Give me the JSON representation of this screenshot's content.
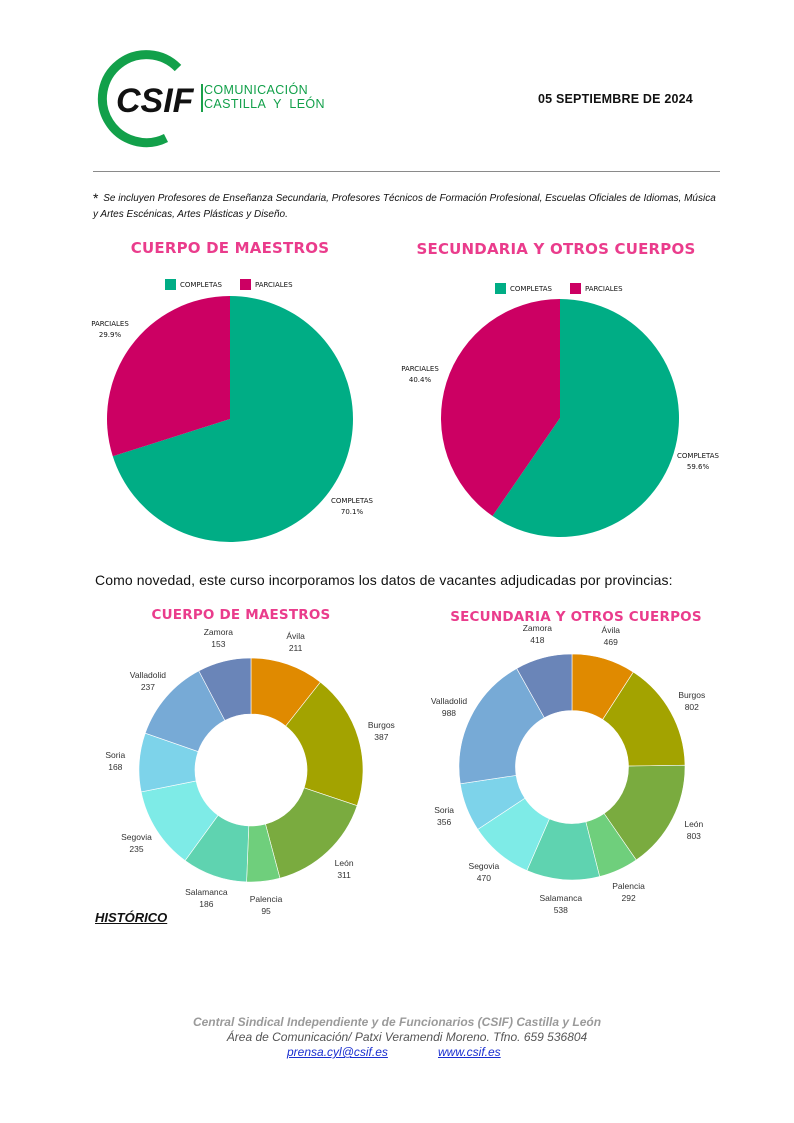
{
  "header": {
    "logo_text": "CSIF",
    "org_line1": "COMUNICACIÓN",
    "org_line2": "CASTILLA  Y  LEÓN",
    "date": "05 SEPTIEMBRE DE 2024"
  },
  "footnote": {
    "star": "*",
    "text": "Se incluyen Profesores de Enseñanza Secundaria, Profesores Técnicos de Formación Profesional, Escuelas Oficiales de Idiomas, Música y Artes Escénicas, Artes Plásticas y Diseño."
  },
  "intro_text": "Como novedad, este curso incorporamos los datos de vacantes adjudicadas por provincias:",
  "historico": "HISTÓRICO",
  "colors": {
    "completas": "#00ad85",
    "parciales": "#cc0063",
    "title": "#ea3c8c",
    "brand_green": "#12a04a"
  },
  "chart_data": [
    {
      "type": "pie",
      "title": "CUERPO DE MAESTROS",
      "legend_position": "top",
      "labels": [
        "COMPLETAS",
        "PARCIALES"
      ],
      "values": [
        70.1,
        29.9
      ],
      "value_labels": [
        "70.1%",
        "29.9%"
      ],
      "colors": [
        "#00ad85",
        "#cc0063"
      ]
    },
    {
      "type": "pie",
      "title": "SECUNDARIA Y OTROS CUERPOS",
      "legend_position": "top",
      "labels": [
        "COMPLETAS",
        "PARCIALES"
      ],
      "values": [
        59.6,
        40.4
      ],
      "value_labels": [
        "59.6%",
        "40.4%"
      ],
      "colors": [
        "#00ad85",
        "#cc0063"
      ]
    },
    {
      "type": "pie",
      "subtype": "donut",
      "title": "CUERPO DE MAESTROS",
      "labels": [
        "Ávila",
        "Burgos",
        "León",
        "Palencia",
        "Salamanca",
        "Segovia",
        "Soria",
        "Valladolid",
        "Zamora"
      ],
      "values": [
        211,
        387,
        311,
        95,
        186,
        235,
        168,
        237,
        153
      ],
      "colors": [
        "#e08a00",
        "#a3a300",
        "#7aab3f",
        "#6fcf7c",
        "#5fd3b0",
        "#7eebe7",
        "#7dd3ea",
        "#77aad6",
        "#6a85b8"
      ]
    },
    {
      "type": "pie",
      "subtype": "donut",
      "title": "SECUNDARIA Y OTROS CUERPOS",
      "labels": [
        "Ávila",
        "Burgos",
        "León",
        "Palencia",
        "Salamanca",
        "Segovia",
        "Soria",
        "Valladolid",
        "Zamora"
      ],
      "values": [
        469,
        802,
        803,
        292,
        538,
        470,
        356,
        988,
        418
      ],
      "colors": [
        "#e08a00",
        "#a3a300",
        "#7aab3f",
        "#6fcf7c",
        "#5fd3b0",
        "#7eebe7",
        "#7dd3ea",
        "#77aad6",
        "#6a85b8"
      ]
    }
  ],
  "footer": {
    "line1": "Central Sindical Independiente y de Funcionarios (CSIF) Castilla y León",
    "line2": "Área de Comunicación/ Patxi Veramendi Moreno. Tfno. 659 536804",
    "email": "prensa.cyl@csif.es",
    "web": "www.csif.es"
  }
}
